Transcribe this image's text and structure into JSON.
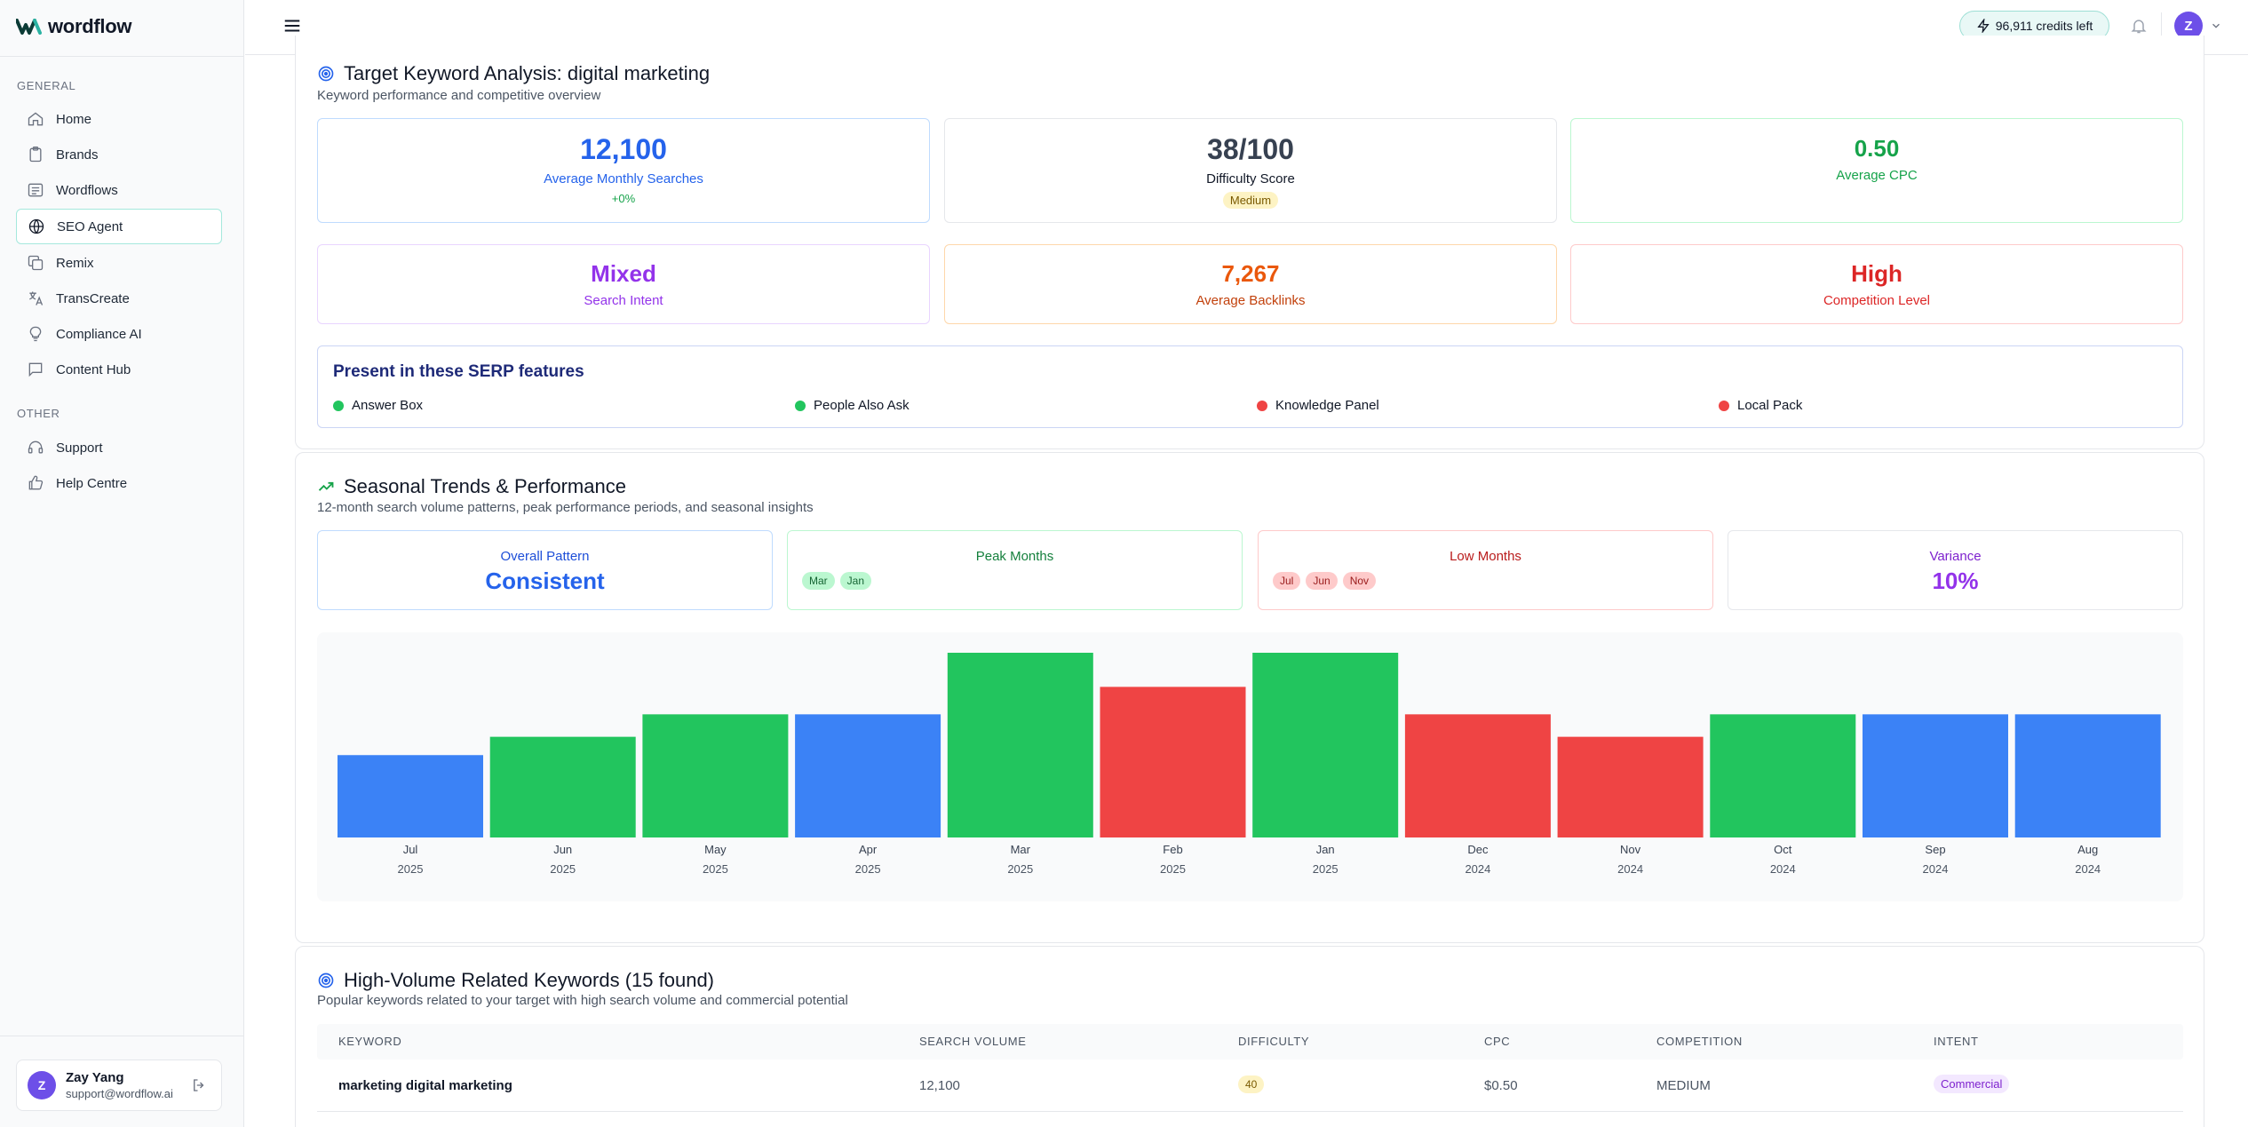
{
  "app": {
    "name": "wordflow"
  },
  "sidebar": {
    "general_label": "GENERAL",
    "other_label": "OTHER",
    "items": [
      {
        "label": "Home",
        "icon": "home-icon"
      },
      {
        "label": "Brands",
        "icon": "clipboard-icon"
      },
      {
        "label": "Wordflows",
        "icon": "list-icon"
      },
      {
        "label": "SEO Agent",
        "icon": "globe-icon"
      },
      {
        "label": "Remix",
        "icon": "copy-icon"
      },
      {
        "label": "TransCreate",
        "icon": "translate-icon"
      },
      {
        "label": "Compliance AI",
        "icon": "lightbulb-icon"
      },
      {
        "label": "Content Hub",
        "icon": "message-icon"
      }
    ],
    "other_items": [
      {
        "label": "Support",
        "icon": "headset-icon"
      },
      {
        "label": "Help Centre",
        "icon": "thumbs-up-icon"
      }
    ],
    "user": {
      "initial": "Z",
      "name": "Zay Yang",
      "email": "support@wordflow.ai"
    }
  },
  "topbar": {
    "credits": "96,911 credits left",
    "avatar_initial": "Z"
  },
  "analysis": {
    "title": "Target Keyword Analysis: digital marketing",
    "subtitle": "Keyword performance and competitive overview",
    "kpis": {
      "searches": {
        "value": "12,100",
        "label": "Average Monthly Searches",
        "change": "+0%"
      },
      "difficulty": {
        "value": "38/100",
        "label": "Difficulty Score",
        "badge": "Medium"
      },
      "cpc": {
        "value": "0.50",
        "label": "Average CPC"
      },
      "intent": {
        "value": "Mixed",
        "label": "Search Intent"
      },
      "backlinks": {
        "value": "7,267",
        "label": "Average Backlinks"
      },
      "competition": {
        "value": "High",
        "label": "Competition Level"
      }
    },
    "serp": {
      "title": "Present in these SERP features",
      "features": [
        {
          "label": "Answer Box",
          "color": "#22c55e"
        },
        {
          "label": "People Also Ask",
          "color": "#22c55e"
        },
        {
          "label": "Knowledge Panel",
          "color": "#ef4444"
        },
        {
          "label": "Local Pack",
          "color": "#ef4444"
        }
      ]
    }
  },
  "seasonal": {
    "title": "Seasonal Trends & Performance",
    "subtitle": "12-month search volume patterns, peak performance periods, and seasonal insights",
    "pattern": {
      "label": "Overall Pattern",
      "value": "Consistent"
    },
    "peak": {
      "label": "Peak Months",
      "months": [
        "Mar",
        "Jan"
      ]
    },
    "low": {
      "label": "Low Months",
      "months": [
        "Jul",
        "Jun",
        "Nov"
      ]
    },
    "variance": {
      "label": "Variance",
      "value": "10%"
    }
  },
  "chart_data": {
    "type": "bar",
    "title": "",
    "categories": [
      "Jul",
      "Jun",
      "May",
      "Apr",
      "Mar",
      "Feb",
      "Jan",
      "Dec",
      "Nov",
      "Oct",
      "Sep",
      "Aug"
    ],
    "years": [
      "2025",
      "2025",
      "2025",
      "2025",
      "2025",
      "2025",
      "2025",
      "2024",
      "2024",
      "2024",
      "2024",
      "2024"
    ],
    "values": [
      9900,
      12100,
      14800,
      14800,
      22200,
      18100,
      22200,
      14800,
      12100,
      14800,
      14800,
      14800
    ],
    "colors": [
      "#3b82f6",
      "#22c55e",
      "#22c55e",
      "#3b82f6",
      "#22c55e",
      "#ef4444",
      "#22c55e",
      "#ef4444",
      "#ef4444",
      "#22c55e",
      "#3b82f6",
      "#3b82f6"
    ],
    "ylim": [
      0,
      22200
    ],
    "xlabel": "",
    "ylabel": ""
  },
  "related": {
    "title": "High-Volume Related Keywords (15 found)",
    "subtitle": "Popular keywords related to your target with high search volume and commercial potential",
    "columns": [
      "KEYWORD",
      "SEARCH VOLUME",
      "DIFFICULTY",
      "CPC",
      "COMPETITION",
      "INTENT"
    ],
    "rows": [
      {
        "keyword": "marketing digital marketing",
        "volume": "12,100",
        "difficulty": "40",
        "cpc": "$0.50",
        "competition": "MEDIUM",
        "intent": "Commercial"
      }
    ]
  }
}
